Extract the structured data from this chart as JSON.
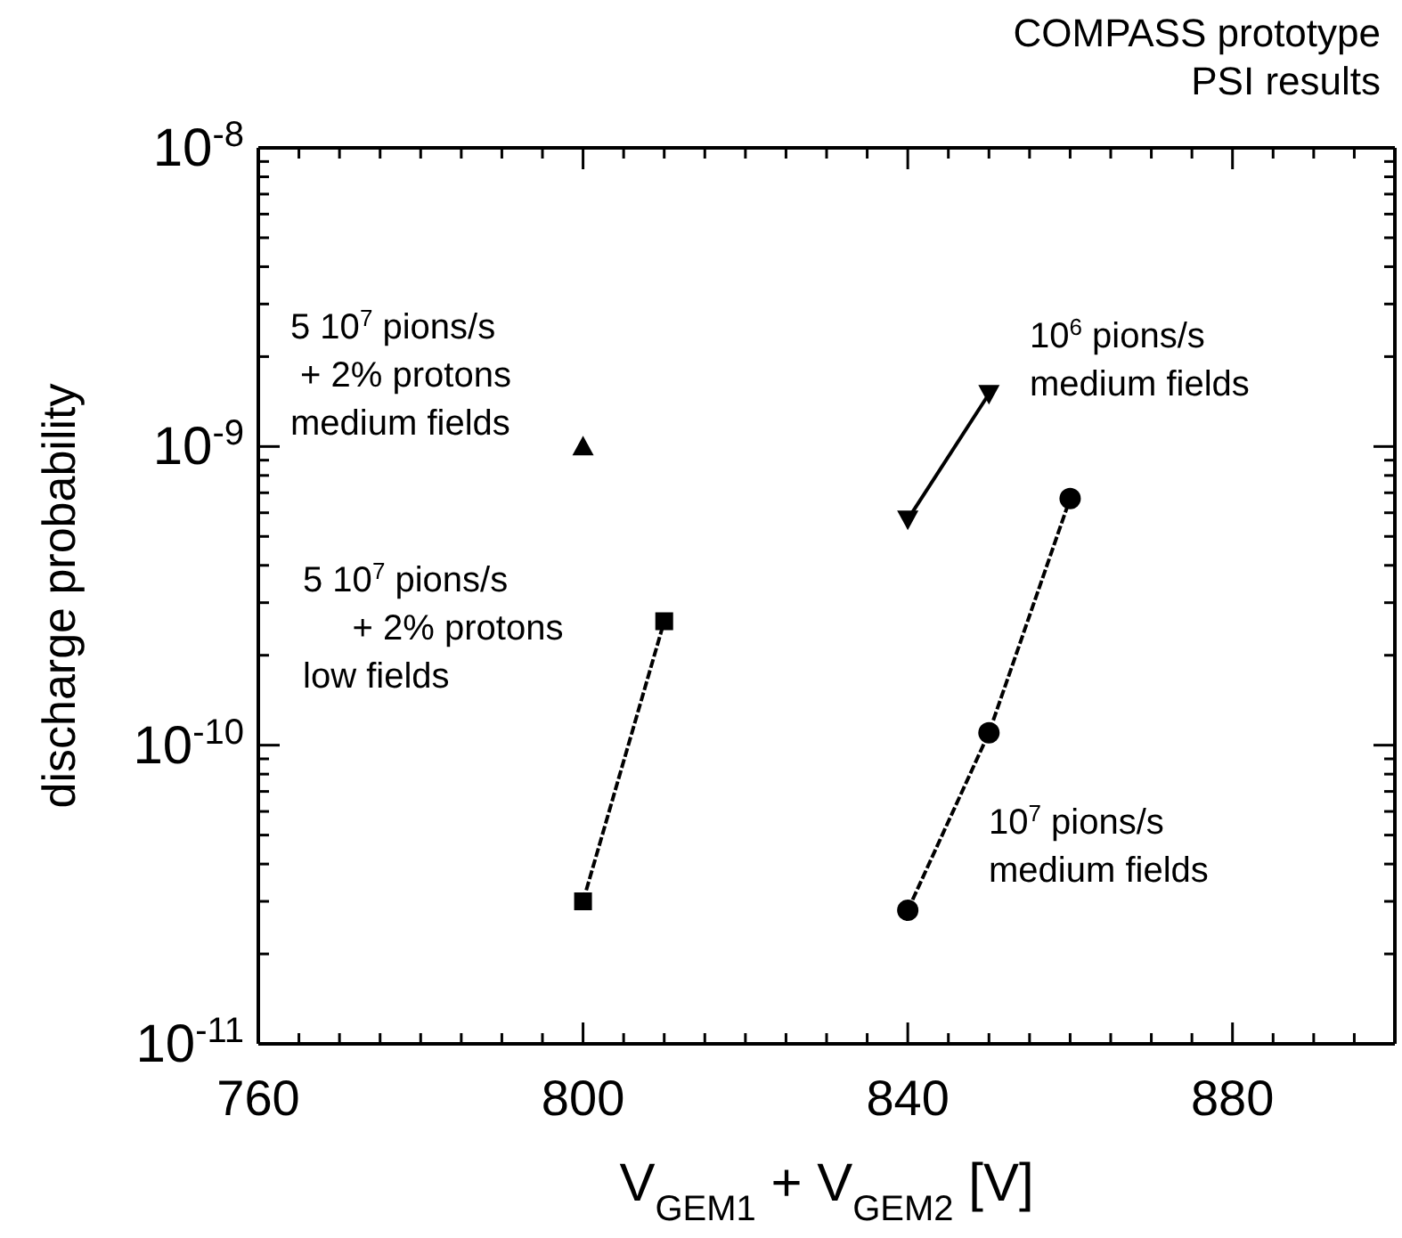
{
  "chart_data": {
    "type": "line",
    "title": "COMPASS prototype\nPSI results",
    "xlabel": "V$_{GEM1}$ + V$_{GEM2}$ [V]",
    "ylabel": "discharge probability",
    "log": "y",
    "xlim": [
      760,
      900
    ],
    "xticks": [
      760,
      {
        "value": 765,
        "label": null
      },
      {
        "value": 770,
        "label": null
      },
      {
        "value": 775,
        "label": null
      },
      {
        "value": 780,
        "label": null
      },
      {
        "value": 785,
        "label": null
      },
      {
        "value": 790,
        "label": null
      },
      {
        "value": 795,
        "label": null
      },
      800,
      {
        "value": 805,
        "label": null
      },
      {
        "value": 810,
        "label": null
      },
      {
        "value": 815,
        "label": null
      },
      {
        "value": 820,
        "label": null
      },
      {
        "value": 825,
        "label": null
      },
      {
        "value": 830,
        "label": null
      },
      {
        "value": 835,
        "label": null
      },
      840,
      {
        "value": 845,
        "label": null
      },
      {
        "value": 850,
        "label": null
      },
      {
        "value": 855,
        "label": null
      },
      {
        "value": 860,
        "label": null
      },
      {
        "value": 865,
        "label": null
      },
      {
        "value": 870,
        "label": null
      },
      {
        "value": 875,
        "label": null
      },
      880,
      {
        "value": 885,
        "label": null
      },
      {
        "value": 890,
        "label": null
      },
      {
        "value": 895,
        "label": null
      }
    ],
    "ylim": [
      1e-11,
      1e-08
    ],
    "yticks": [
      {
        "value": 1e-11,
        "label": "10$^{-11}$"
      },
      {
        "value": 2e-11,
        "label": null
      },
      {
        "value": 3e-11,
        "label": null
      },
      {
        "value": 4e-11,
        "label": null
      },
      {
        "value": 5e-11,
        "label": null
      },
      {
        "value": 6e-11,
        "label": null
      },
      {
        "value": 7e-11,
        "label": null
      },
      {
        "value": 8e-11,
        "label": null
      },
      {
        "value": 9e-11,
        "label": null
      },
      {
        "value": 1e-10,
        "label": "10$^{-10}$"
      },
      {
        "value": 2e-10,
        "label": null
      },
      {
        "value": 3e-10,
        "label": null
      },
      {
        "value": 4e-10,
        "label": null
      },
      {
        "value": 5e-10,
        "label": null
      },
      {
        "value": 6e-10,
        "label": null
      },
      {
        "value": 7e-10,
        "label": null
      },
      {
        "value": 8e-10,
        "label": null
      },
      {
        "value": 9e-10,
        "label": null
      },
      {
        "value": 1e-09,
        "label": "10$^{-9}$"
      },
      {
        "value": 2e-09,
        "label": null
      },
      {
        "value": 3e-09,
        "label": null
      },
      {
        "value": 4e-09,
        "label": null
      },
      {
        "value": 5e-09,
        "label": null
      },
      {
        "value": 6e-09,
        "label": null
      },
      {
        "value": 7e-09,
        "label": null
      },
      {
        "value": 8e-09,
        "label": null
      },
      {
        "value": 9e-09,
        "label": null
      },
      {
        "value": 1e-08,
        "label": "10$^{-8}$"
      }
    ],
    "series": [
      {
        "type": "scatter",
        "marker": "triangle",
        "color": "#000000",
        "x": [
          800
        ],
        "values": [
          1e-09
        ]
      },
      {
        "type": "line",
        "marker": "square",
        "line_style": "dashed",
        "color": "#000000",
        "x": [
          800,
          810
        ],
        "values": [
          3e-11,
          2.6e-10
        ]
      },
      {
        "type": "line",
        "marker": "triangle-down",
        "line_style": "solid",
        "color": "#000000",
        "x": [
          840,
          850
        ],
        "values": [
          5.7e-10,
          1.5e-09
        ]
      },
      {
        "type": "line",
        "marker": "circle",
        "line_style": "dashed",
        "color": "#000000",
        "x": [
          840,
          850,
          860
        ],
        "values": [
          2.8e-11,
          1.1e-10,
          6.7e-10
        ]
      }
    ],
    "annotations": [
      "5 10$^{7}$ pions/s\n + 2% protons\nmedium fields",
      "5 10$^{7}$ pions/s\n     + 2% protons\nlow fields",
      "10$^{6}$ pions/s\nmedium fields",
      "10$^{7}$ pions/s\nmedium fields"
    ]
  }
}
